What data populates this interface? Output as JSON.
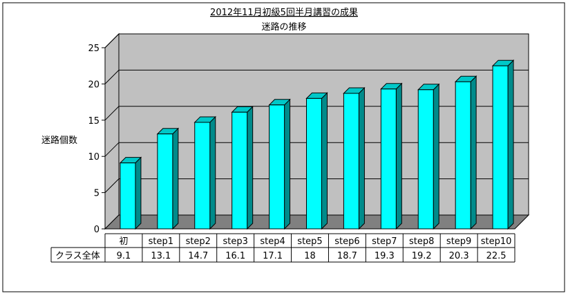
{
  "chart_data": {
    "type": "bar",
    "title": "2012年11月初級5回半月講習の成果",
    "subtitle": "迷路の推移",
    "xlabel": "",
    "ylabel": "迷路個数",
    "ylim": [
      0,
      25
    ],
    "yticks": [
      0,
      5,
      10,
      15,
      20,
      25
    ],
    "grid": true,
    "legend": "none",
    "categories": [
      "初",
      "step1",
      "step2",
      "step3",
      "step4",
      "step5",
      "step6",
      "step7",
      "step8",
      "step9",
      "step10"
    ],
    "series": [
      {
        "name": "クラス全体",
        "values": [
          9.1,
          13.1,
          14.7,
          16.1,
          17.1,
          18,
          18.7,
          19.3,
          19.2,
          20.3,
          22.5
        ],
        "labels": [
          "9.1",
          "13.1",
          "14.7",
          "16.1",
          "17.1",
          "18",
          "18.7",
          "19.3",
          "19.2",
          "20.3",
          "22.5"
        ],
        "color": "#00ffff"
      }
    ],
    "colors": {
      "bar_front": "#00ffff",
      "bar_side": "#008b8b",
      "bar_top": "#00c8c8",
      "wall": "#c0c0c0",
      "floor": "#808080"
    }
  }
}
